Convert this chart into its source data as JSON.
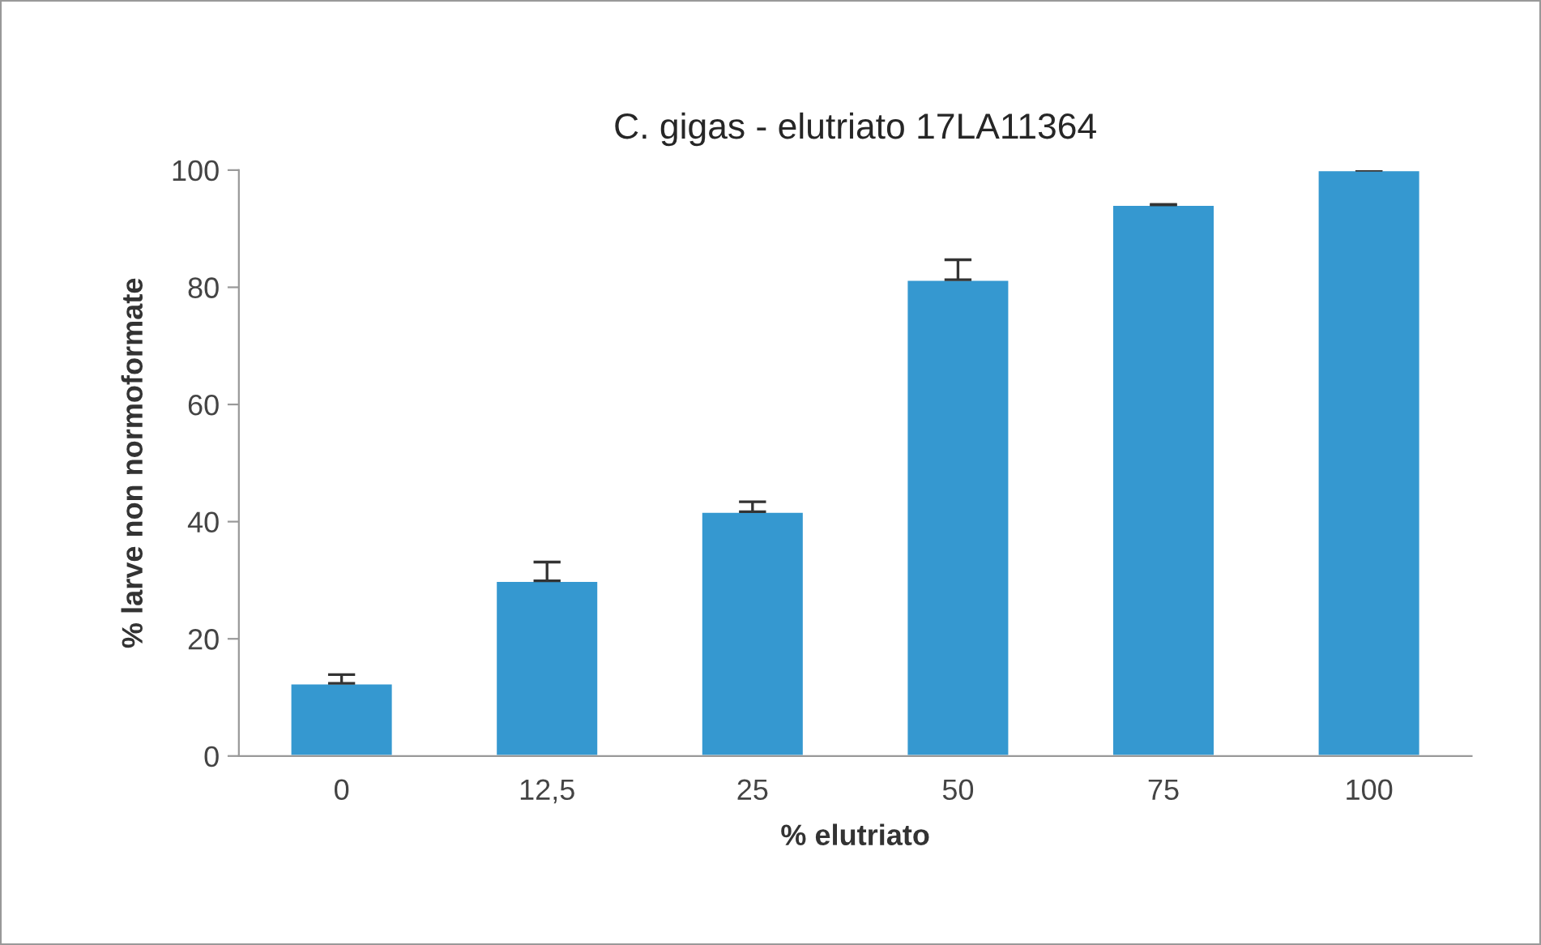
{
  "chart_data": {
    "type": "bar",
    "title": "C. gigas - elutriato 17LA11364",
    "xlabel": "% elutriato",
    "ylabel": "% larve non normoformate",
    "categories": [
      "0",
      "12,5",
      "25",
      "50",
      "75",
      "100"
    ],
    "values": [
      12.4,
      29.9,
      41.7,
      81.3,
      94.1,
      100
    ],
    "errors": [
      [
        12.4,
        13.9
      ],
      [
        29.9,
        33.1
      ],
      [
        41.7,
        43.4
      ],
      [
        81.3,
        84.7
      ],
      [
        94.1,
        94.1
      ],
      [
        100,
        100
      ]
    ],
    "color": "#3598d0",
    "ylim": [
      0,
      100
    ],
    "yticks": [
      0,
      20,
      40,
      60,
      80,
      100
    ],
    "grid": false,
    "legend": false
  }
}
